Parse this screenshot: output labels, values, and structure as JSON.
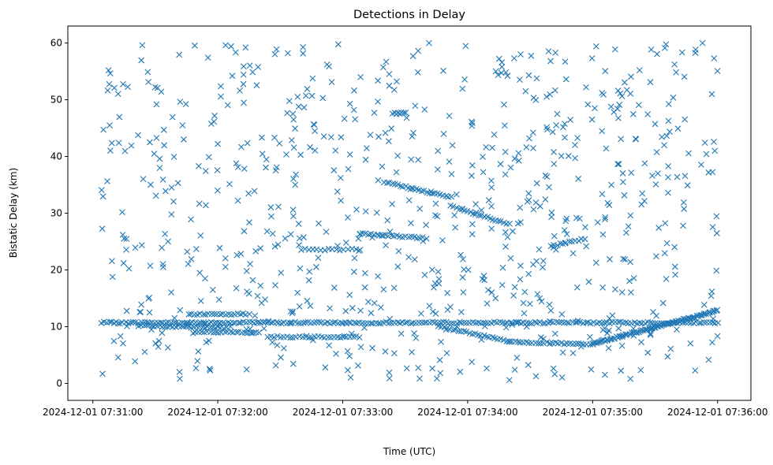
{
  "chart_data": {
    "type": "scatter",
    "title": "Detections in Delay",
    "xlabel": "Time (UTC)",
    "ylabel": "Bistatic Delay (km)",
    "marker": "x",
    "color": "#1f77b4",
    "grid": false,
    "legend": "none",
    "x_unit": "seconds after 2024-12-01 07:31:00 UTC",
    "xlim": [
      -12,
      316
    ],
    "ylim": [
      -3,
      63
    ],
    "x_ticks": [
      {
        "value": 0,
        "label": "2024-12-01 07:31:00"
      },
      {
        "value": 60,
        "label": "2024-12-01 07:32:00"
      },
      {
        "value": 120,
        "label": "2024-12-01 07:33:00"
      },
      {
        "value": 180,
        "label": "2024-12-01 07:34:00"
      },
      {
        "value": 240,
        "label": "2024-12-01 07:35:00"
      },
      {
        "value": 300,
        "label": "2024-12-01 07:36:00"
      }
    ],
    "y_ticks": [
      {
        "value": 0,
        "label": "0"
      },
      {
        "value": 10,
        "label": "10"
      },
      {
        "value": 20,
        "label": "20"
      },
      {
        "value": 30,
        "label": "30"
      },
      {
        "value": 40,
        "label": "40"
      },
      {
        "value": 50,
        "label": "50"
      },
      {
        "value": 60,
        "label": "60"
      }
    ],
    "tracks": [
      {
        "x": [
          4,
          300
        ],
        "y": [
          10.7,
          10.7
        ],
        "n": 230
      },
      {
        "x": [
          22,
          64
        ],
        "y": [
          10.2,
          9.8
        ],
        "n": 34
      },
      {
        "x": [
          46,
          75
        ],
        "y": [
          12.2,
          12.2
        ],
        "n": 22
      },
      {
        "x": [
          48,
          80
        ],
        "y": [
          9.0,
          9.0
        ],
        "n": 24
      },
      {
        "x": [
          84,
          128
        ],
        "y": [
          8.2,
          8.2
        ],
        "n": 30
      },
      {
        "x": [
          100,
          128
        ],
        "y": [
          23.6,
          23.6
        ],
        "n": 16
      },
      {
        "x": [
          128,
          160
        ],
        "y": [
          26.4,
          25.6
        ],
        "n": 24
      },
      {
        "x": [
          144,
          150
        ],
        "y": [
          47.6,
          47.6
        ],
        "n": 8
      },
      {
        "x": [
          140,
          172
        ],
        "y": [
          35.5,
          32.8
        ],
        "n": 26
      },
      {
        "x": [
          172,
          200
        ],
        "y": [
          31.2,
          28.0
        ],
        "n": 22
      },
      {
        "x": [
          166,
          200
        ],
        "y": [
          10.0,
          7.4
        ],
        "n": 26
      },
      {
        "x": [
          200,
          240
        ],
        "y": [
          7.4,
          6.8
        ],
        "n": 30
      },
      {
        "x": [
          240,
          300
        ],
        "y": [
          7.0,
          12.8
        ],
        "n": 90
      },
      {
        "x": [
          220,
          236
        ],
        "y": [
          24.2,
          25.5
        ],
        "n": 12
      }
    ],
    "noise": {
      "count": 760,
      "x_range": [
        4,
        300
      ],
      "y_range": [
        0.5,
        60
      ],
      "seed": 7
    }
  }
}
